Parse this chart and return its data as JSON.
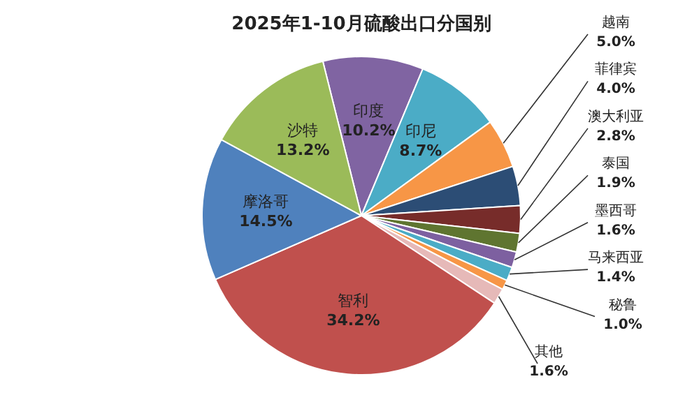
{
  "chart_data": {
    "type": "pie",
    "title": "2025年1-10月硫酸出口分国别",
    "categories": [
      "印度",
      "印尼",
      "越南",
      "菲律宾",
      "澳大利亚",
      "泰国",
      "墨西哥",
      "马来西亚",
      "秘鲁",
      "其他",
      "智利",
      "摩洛哥",
      "沙特"
    ],
    "values": [
      10.2,
      8.7,
      5.0,
      4.0,
      2.8,
      1.9,
      1.6,
      1.4,
      1.0,
      1.6,
      34.2,
      14.5,
      13.2
    ],
    "colors": [
      "#8064a2",
      "#4bacc6",
      "#f79646",
      "#2c4d75",
      "#772c2a",
      "#5f7530",
      "#7d60a0",
      "#4bacc6",
      "#f79646",
      "#e6b9b8",
      "#c0504d",
      "#4f81bd",
      "#9bbb59"
    ],
    "value_labels": [
      "10.2%",
      "8.7%",
      "5.0%",
      "4.0%",
      "2.8%",
      "1.9%",
      "1.6%",
      "1.4%",
      "1.0%",
      "1.6%",
      "34.2%",
      "14.5%",
      "13.2%"
    ]
  }
}
